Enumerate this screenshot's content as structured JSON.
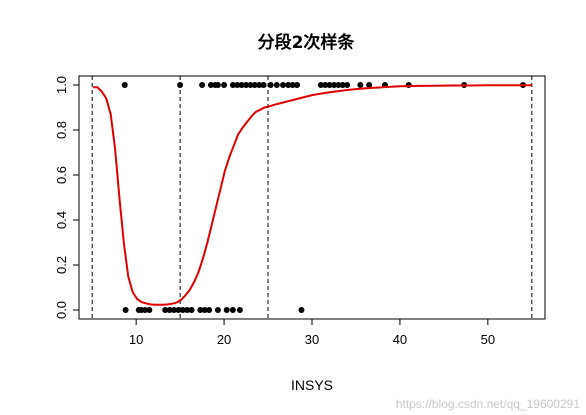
{
  "chart_data": {
    "type": "scatter",
    "title": "分段2次样条",
    "xlabel": "INSYS",
    "ylabel": "",
    "xlim": [
      3.5,
      56.5
    ],
    "ylim": [
      -0.04,
      1.04
    ],
    "x_ticks": [
      10,
      20,
      30,
      40,
      50
    ],
    "y_ticks": [
      0.0,
      0.2,
      0.4,
      0.6,
      0.8,
      1.0
    ],
    "x_tick_labels": [
      "10",
      "20",
      "30",
      "40",
      "50"
    ],
    "y_tick_labels": [
      "0.0",
      "0.2",
      "0.4",
      "0.6",
      "0.8",
      "1.0"
    ],
    "grid": false,
    "knots": [
      5,
      15,
      25,
      55
    ],
    "points": {
      "y1": [
        8.7,
        15.0,
        17.5,
        18.5,
        19.0,
        19.3,
        20.0,
        21.0,
        21.5,
        22.0,
        22.5,
        23.0,
        23.5,
        24.0,
        24.5,
        25.3,
        26.0,
        26.7,
        27.3,
        27.8,
        28.3,
        31.0,
        31.5,
        32.0,
        32.5,
        33.0,
        33.5,
        34.0,
        35.5,
        36.5,
        38.3,
        41.0,
        47.3,
        54.0
      ],
      "y0": [
        8.8,
        10.3,
        10.6,
        11.0,
        11.5,
        13.3,
        13.8,
        14.3,
        14.8,
        15.3,
        15.8,
        16.3,
        17.3,
        17.8,
        18.3,
        19.3,
        20.3,
        21.0,
        21.8,
        28.8
      ]
    },
    "fitted_curve": {
      "name": "",
      "color": "#e00000",
      "x": [
        5.1,
        5.6,
        6.1,
        6.6,
        7.1,
        7.6,
        8.1,
        8.6,
        9.1,
        9.6,
        10.1,
        10.6,
        11.1,
        11.6,
        12.1,
        12.6,
        13.1,
        13.6,
        14.1,
        14.6,
        15.1,
        15.6,
        16.1,
        16.6,
        17.1,
        17.6,
        18.1,
        18.6,
        19.1,
        19.6,
        20.1,
        20.6,
        21.1,
        21.6,
        22.1,
        22.6,
        23.1,
        23.6,
        24.1,
        24.6,
        25.1,
        26.0,
        27.0,
        28.0,
        29.0,
        30.0,
        31.0,
        32.0,
        33.0,
        34.0,
        35.0,
        36.0,
        37.0,
        38.0,
        39.0,
        40.0,
        41.0,
        42.0,
        44.0,
        46.0,
        48.0,
        50.0,
        52.0,
        54.0,
        55.0
      ],
      "y": [
        0.99,
        0.99,
        0.97,
        0.94,
        0.87,
        0.72,
        0.5,
        0.3,
        0.15,
        0.08,
        0.05,
        0.035,
        0.03,
        0.025,
        0.023,
        0.023,
        0.023,
        0.025,
        0.028,
        0.033,
        0.045,
        0.065,
        0.09,
        0.125,
        0.17,
        0.23,
        0.3,
        0.38,
        0.46,
        0.54,
        0.62,
        0.68,
        0.73,
        0.78,
        0.81,
        0.835,
        0.86,
        0.88,
        0.89,
        0.9,
        0.905,
        0.915,
        0.925,
        0.935,
        0.945,
        0.955,
        0.962,
        0.968,
        0.973,
        0.978,
        0.982,
        0.985,
        0.988,
        0.99,
        0.992,
        0.994,
        0.995,
        0.996,
        0.997,
        0.998,
        0.998,
        0.999,
        0.999,
        0.999,
        0.999
      ]
    },
    "watermark": "https://blog.csdn.net/qq_19600291"
  }
}
